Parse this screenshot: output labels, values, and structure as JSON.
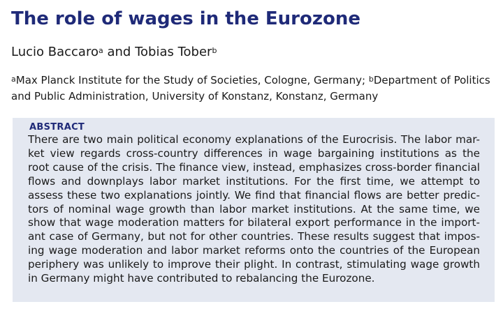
{
  "title": "The role of wages in the Eurozone",
  "authors": {
    "author1": "Lucio Baccaro",
    "author1_sup": "a",
    "connector": "and",
    "author2": "Tobias Tober",
    "author2_sup": "b"
  },
  "affiliations": {
    "a_sup": "a",
    "a_text": "Max Planck Institute for the Study of Societies, Cologne, Germany;",
    "b_sup": "b",
    "b_text_line1": "Department of Politics",
    "b_text_line2": "and Public Administration, University of Konstanz, Konstanz, Germany"
  },
  "abstract": {
    "heading": "ABSTRACT",
    "lines": [
      "There are two main political economy explanations of the Eurocrisis. The labor mar-",
      "ket view regards cross-country differences in wage bargaining institutions as the",
      "root cause of the crisis. The finance view, instead, emphasizes cross-border financial",
      "flows and downplays labor market institutions. For the first time, we attempt to",
      "assess these two explanations jointly. We find that financial flows are better predic-",
      "tors of nominal wage growth than labor market institutions. At the same time, we",
      "show that wage moderation matters for bilateral export performance in the import-",
      "ant case of Germany, but not for other countries. These results suggest that impos-",
      "ing wage moderation and labor market reforms onto the countries of the European",
      "periphery was unlikely to improve their plight. In contrast, stimulating wage growth",
      "in Germany might have contributed to rebalancing the Eurozone."
    ]
  }
}
